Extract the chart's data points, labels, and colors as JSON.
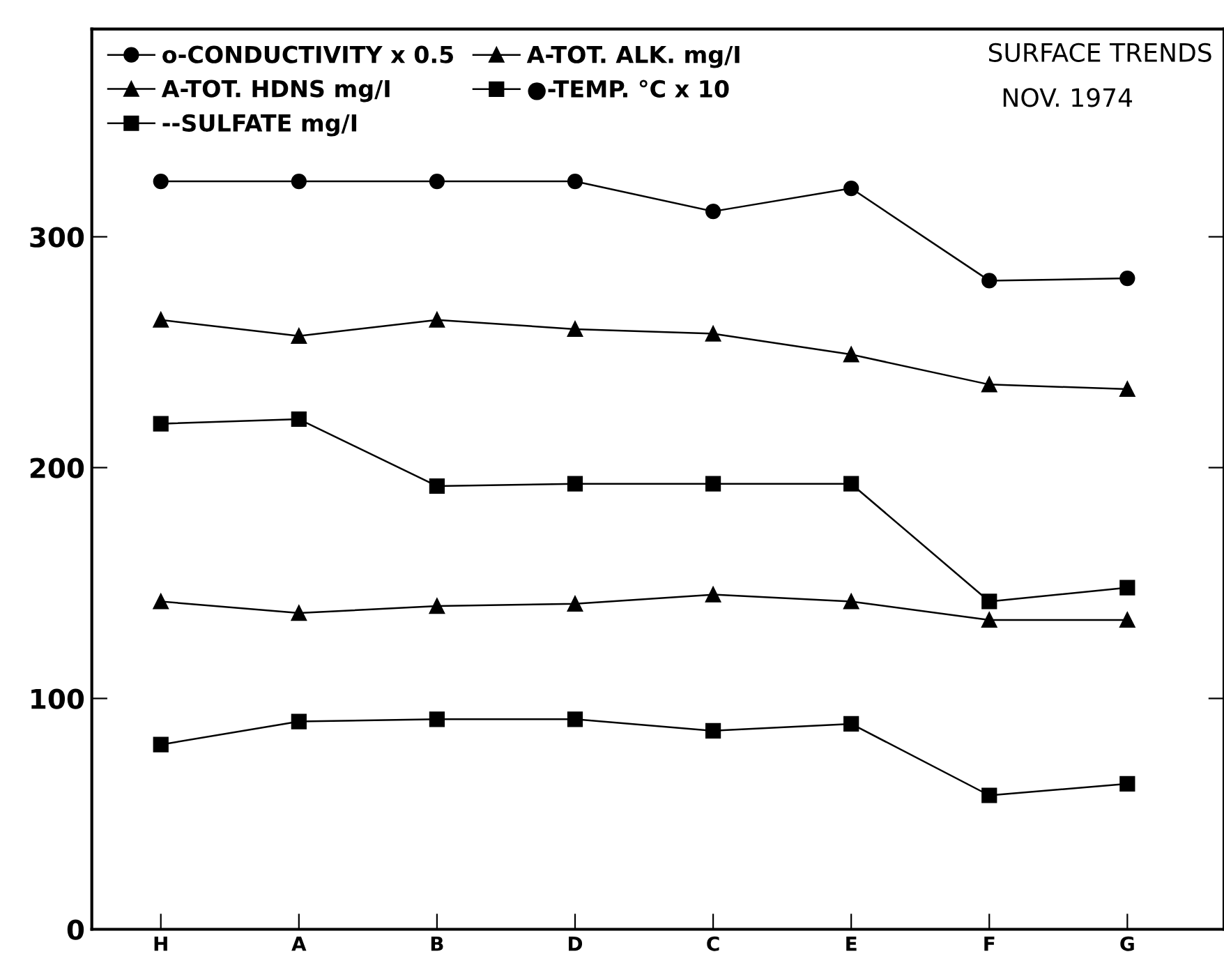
{
  "chart_data": {
    "type": "line",
    "title": "SURFACE TRENDS",
    "subtitle": "NOV. 1974",
    "categories": [
      "H",
      "A",
      "B",
      "D",
      "C",
      "E",
      "F",
      "G"
    ],
    "series": [
      {
        "name": "o-CONDUCTIVITY x 0.5",
        "color": "#000000",
        "marker": "circle",
        "values": [
          324,
          324,
          324,
          324,
          311,
          321,
          281,
          282
        ]
      },
      {
        "name": "A-TOT. HDNS mg/I",
        "color": "#000000",
        "marker": "triangle",
        "values": [
          264,
          257,
          264,
          260,
          258,
          249,
          236,
          234
        ]
      },
      {
        "name": "--SULFATE mg/I",
        "color": "#000000",
        "marker": "square",
        "values": [
          219,
          221,
          192,
          193,
          193,
          193,
          142,
          148
        ]
      },
      {
        "name": "A-TOT. ALK. mg/I",
        "color": "#000000",
        "marker": "triangle",
        "values": [
          142,
          137,
          140,
          141,
          145,
          142,
          134,
          134
        ]
      },
      {
        "name": "●-TEMP. °C x 10",
        "color": "#000000",
        "marker": "square",
        "values": [
          80,
          90,
          91,
          91,
          86,
          89,
          58,
          63
        ]
      }
    ],
    "ylim": [
      0,
      390
    ],
    "yticks": [
      0,
      100,
      200,
      300
    ],
    "grid": false,
    "legend": "top left",
    "line_style": "solid"
  }
}
